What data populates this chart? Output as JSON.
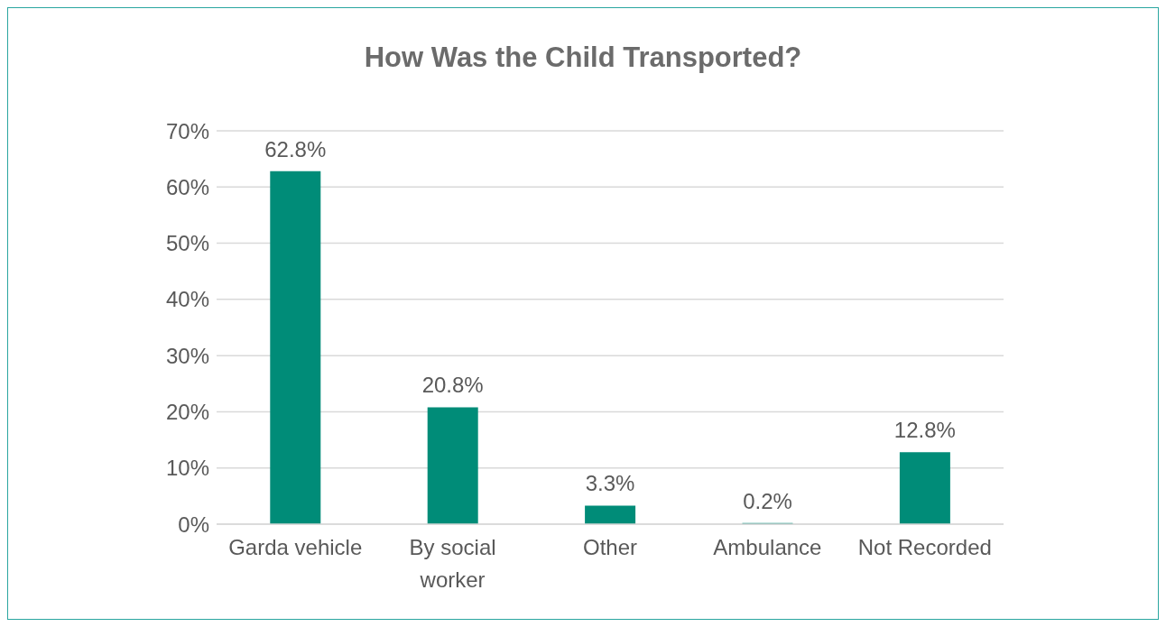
{
  "chart_data": {
    "type": "bar",
    "title": "How Was the Child Transported?",
    "categories": [
      "Garda vehicle",
      "By social worker",
      "Other",
      "Ambulance",
      "Not Recorded"
    ],
    "values": [
      62.8,
      20.8,
      3.3,
      0.2,
      12.8
    ],
    "value_labels": [
      "62.8%",
      "20.8%",
      "3.3%",
      "0.2%",
      "12.8%"
    ],
    "color": "#008c78",
    "ylim": [
      0,
      70
    ],
    "yticks": [
      {
        "value": 0,
        "label": "0%"
      },
      {
        "value": 10,
        "label": "10%"
      },
      {
        "value": 20,
        "label": "20%"
      },
      {
        "value": 30,
        "label": "30%"
      },
      {
        "value": 40,
        "label": "40%"
      },
      {
        "value": 50,
        "label": "50%"
      },
      {
        "value": 60,
        "label": "60%"
      },
      {
        "value": 70,
        "label": "70%"
      }
    ],
    "grid": "y",
    "legend": false
  }
}
